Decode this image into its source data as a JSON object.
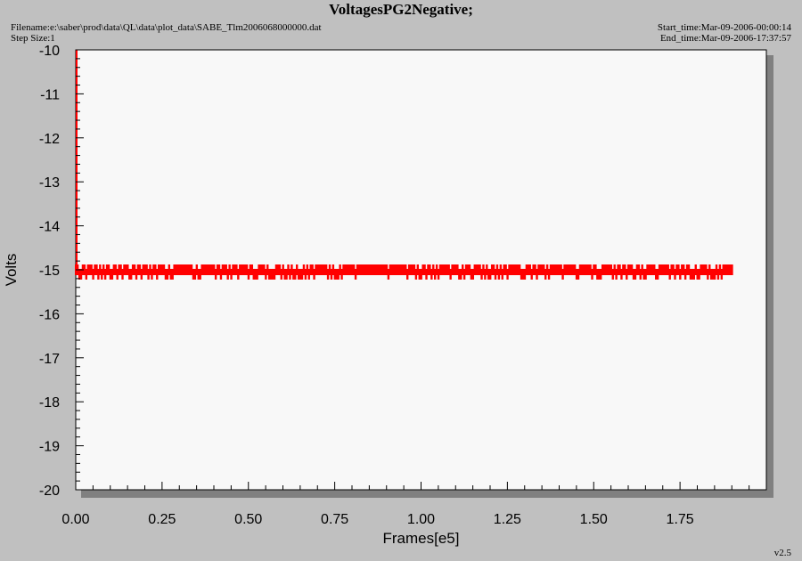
{
  "header": {
    "title": "VoltagesPG2Negative;",
    "filename": "Filename:e:\\saber\\prod\\data\\QL\\data\\plot_data\\SABE_Tlm2006068000000.dat",
    "step_size": "Step Size:1",
    "start_time": "Start_time:Mar-09-2006-00:00:14",
    "end_time": "End_time:Mar-09-2006-17:37:57"
  },
  "footer": {
    "version": "v2.5"
  },
  "colors": {
    "background": "#c0c0c0",
    "plot_area": "#f8f8f8",
    "shadow": "#808080",
    "data": "#ff0000",
    "axis": "#000000"
  },
  "chart_data": {
    "type": "scatter",
    "title": "VoltagesPG2Negative;",
    "xlabel": "Frames[e5]",
    "ylabel": "Volts",
    "xlim": [
      0,
      2.0
    ],
    "ylim": [
      -20,
      -10
    ],
    "x_ticks": [
      "0.00",
      "0.25",
      "0.50",
      "0.75",
      "1.00",
      "1.25",
      "1.50",
      "1.75"
    ],
    "y_ticks": [
      "-10",
      "-11",
      "-12",
      "-13",
      "-14",
      "-15",
      "-16",
      "-17",
      "-18",
      "-19",
      "-20"
    ],
    "grid": false,
    "series": [
      {
        "color": "#ff0000",
        "x_range": [
          0.0,
          1.9
        ],
        "y_values": [
          -15.0,
          -15.1
        ],
        "description_values": {
          "dominant_y": -15.0,
          "alternate_y": -15.1
        }
      }
    ],
    "initial_spike": {
      "x": 0.0,
      "y_from": -10,
      "y_to": -15
    }
  }
}
